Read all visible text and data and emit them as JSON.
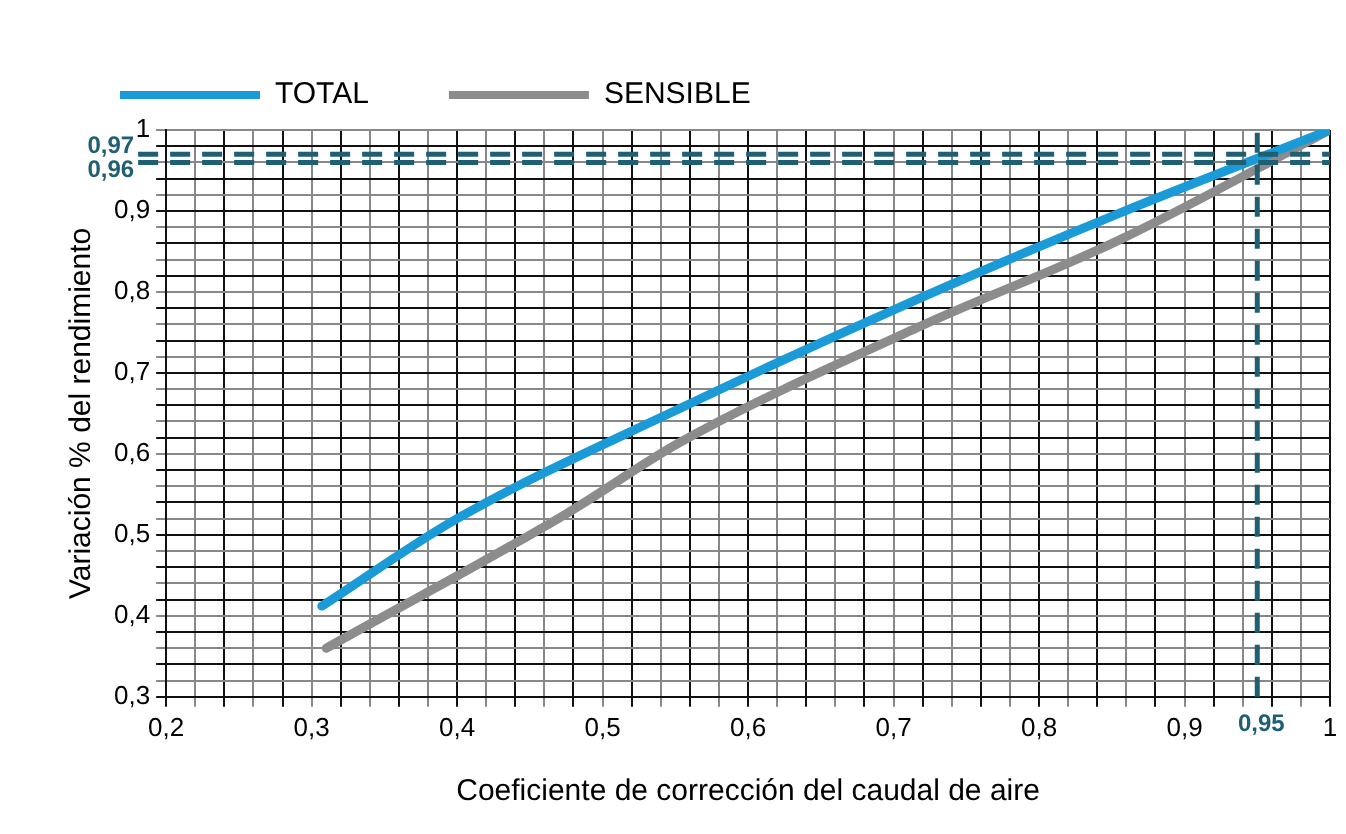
{
  "chart_data": {
    "type": "line",
    "xlabel": "Coeficiente de corrección del caudal de aire",
    "ylabel": "Variación % del rendimiento",
    "series": [
      {
        "name": "TOTAL",
        "color": "#1a9ad6",
        "x": [
          0.307,
          0.4,
          0.553,
          0.719,
          0.855,
          1
        ],
        "values": [
          0.412,
          0.52,
          0.656,
          0.793,
          0.897,
          1
        ]
      },
      {
        "name": "SENSIBLE",
        "color": "#8c8c8c",
        "x": [
          0.31,
          0.475,
          0.553,
          0.719,
          0.855,
          1
        ],
        "values": [
          0.36,
          0.526,
          0.614,
          0.758,
          0.864,
          1
        ]
      }
    ],
    "xlim": [
      0.2,
      1
    ],
    "ylim": [
      0.3,
      1
    ],
    "xticks": [
      {
        "value": 0.2,
        "label": "0,2"
      },
      {
        "value": 0.22,
        "label": null
      },
      {
        "value": 0.24,
        "label": null
      },
      {
        "value": 0.26,
        "label": null
      },
      {
        "value": 0.28,
        "label": null
      },
      {
        "value": 0.3,
        "label": "0,3"
      },
      {
        "value": 0.32,
        "label": null
      },
      {
        "value": 0.34,
        "label": null
      },
      {
        "value": 0.36,
        "label": null
      },
      {
        "value": 0.38,
        "label": null
      },
      {
        "value": 0.4,
        "label": "0,4"
      },
      {
        "value": 0.42,
        "label": null
      },
      {
        "value": 0.44,
        "label": null
      },
      {
        "value": 0.46,
        "label": null
      },
      {
        "value": 0.48,
        "label": null
      },
      {
        "value": 0.5,
        "label": "0,5"
      },
      {
        "value": 0.52,
        "label": null
      },
      {
        "value": 0.54,
        "label": null
      },
      {
        "value": 0.56,
        "label": null
      },
      {
        "value": 0.58,
        "label": null
      },
      {
        "value": 0.6,
        "label": "0,6"
      },
      {
        "value": 0.62,
        "label": null
      },
      {
        "value": 0.64,
        "label": null
      },
      {
        "value": 0.66,
        "label": null
      },
      {
        "value": 0.68,
        "label": null
      },
      {
        "value": 0.7,
        "label": "0,7"
      },
      {
        "value": 0.72,
        "label": null
      },
      {
        "value": 0.74,
        "label": null
      },
      {
        "value": 0.76,
        "label": null
      },
      {
        "value": 0.78,
        "label": null
      },
      {
        "value": 0.8,
        "label": "0,8"
      },
      {
        "value": 0.82,
        "label": null
      },
      {
        "value": 0.84,
        "label": null
      },
      {
        "value": 0.86,
        "label": null
      },
      {
        "value": 0.88,
        "label": null
      },
      {
        "value": 0.9,
        "label": "0,9"
      },
      {
        "value": 0.92,
        "label": null
      },
      {
        "value": 0.94,
        "label": null
      },
      {
        "value": 0.96,
        "label": null
      },
      {
        "value": 0.98,
        "label": null
      },
      1
    ],
    "yticks": [
      {
        "value": 0.3,
        "label": "0,3"
      },
      {
        "value": 0.32,
        "label": null
      },
      {
        "value": 0.34,
        "label": null
      },
      {
        "value": 0.36,
        "label": null
      },
      {
        "value": 0.38,
        "label": null
      },
      {
        "value": 0.4,
        "label": "0,4"
      },
      {
        "value": 0.42,
        "label": null
      },
      {
        "value": 0.44,
        "label": null
      },
      {
        "value": 0.46,
        "label": null
      },
      {
        "value": 0.48,
        "label": null
      },
      {
        "value": 0.5,
        "label": "0,5"
      },
      {
        "value": 0.52,
        "label": null
      },
      {
        "value": 0.54,
        "label": null
      },
      {
        "value": 0.56,
        "label": null
      },
      {
        "value": 0.58,
        "label": null
      },
      {
        "value": 0.6,
        "label": "0,6"
      },
      {
        "value": 0.62,
        "label": null
      },
      {
        "value": 0.64,
        "label": null
      },
      {
        "value": 0.66,
        "label": null
      },
      {
        "value": 0.68,
        "label": null
      },
      {
        "value": 0.7,
        "label": "0,7"
      },
      {
        "value": 0.72,
        "label": null
      },
      {
        "value": 0.74,
        "label": null
      },
      {
        "value": 0.76,
        "label": null
      },
      {
        "value": 0.78,
        "label": null
      },
      {
        "value": 0.8,
        "label": "0,8"
      },
      {
        "value": 0.82,
        "label": null
      },
      {
        "value": 0.84,
        "label": null
      },
      {
        "value": 0.86,
        "label": null
      },
      {
        "value": 0.88,
        "label": null
      },
      {
        "value": 0.9,
        "label": "0,9"
      },
      {
        "value": 0.92,
        "label": null
      },
      {
        "value": 0.94,
        "label": null
      },
      {
        "value": 0.96,
        "label": null
      },
      {
        "value": 0.98,
        "label": null
      },
      1
    ],
    "ref_lines": [
      {
        "axis": "y",
        "value": 0.97,
        "label": "0,97",
        "color": "#1f5f73",
        "line_style": "dashed"
      },
      {
        "axis": "y",
        "value": 0.96,
        "label": "0,96",
        "color": "#1f5f73",
        "line_style": "dashed"
      },
      {
        "axis": "x",
        "value": 0.95,
        "label": "0,95",
        "color": "#1f5f73",
        "line_style": "dashed"
      }
    ],
    "grid": true,
    "legend": "top",
    "marker": "none",
    "line_style": "solid"
  }
}
